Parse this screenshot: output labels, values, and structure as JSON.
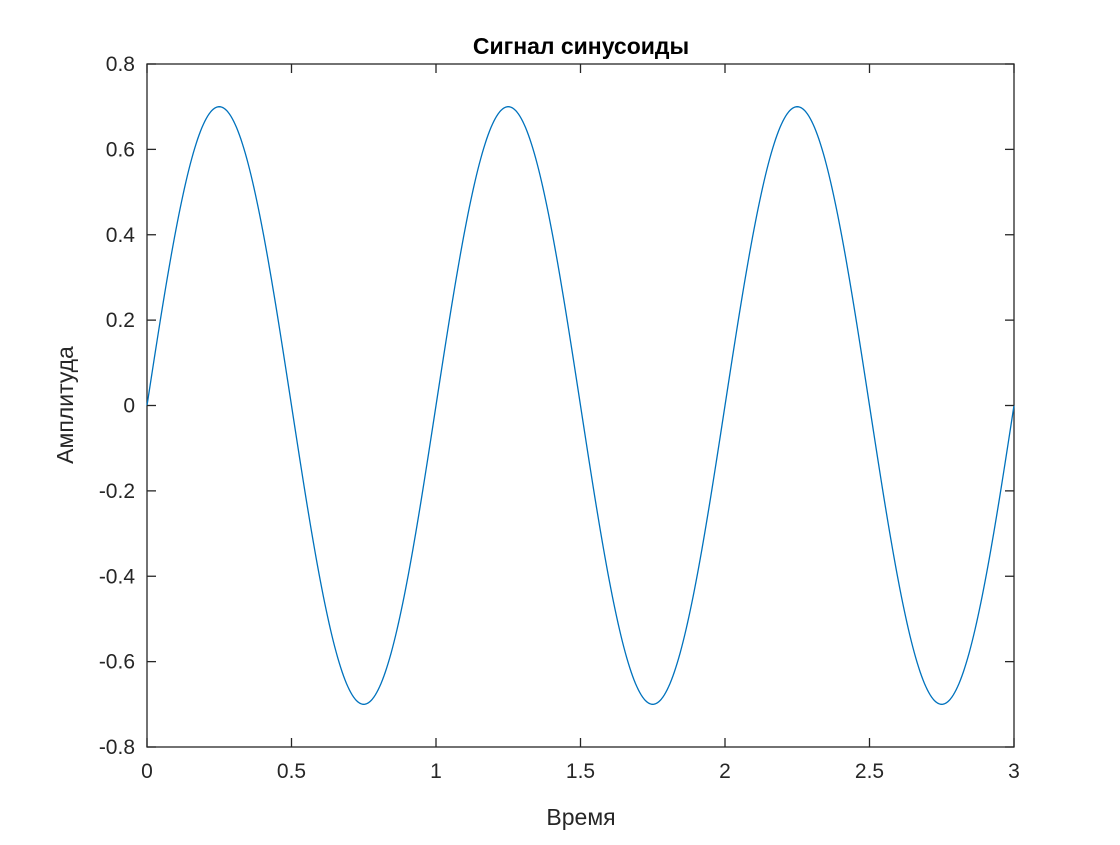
{
  "colors": {
    "line": "#0072BD",
    "axes": "#262626",
    "background": "#ffffff"
  },
  "chart_data": {
    "type": "line",
    "title": "Сигнал синусоиды",
    "xlabel": "Время",
    "ylabel": "Амплитуда",
    "xlim": [
      0,
      3
    ],
    "ylim": [
      -0.8,
      0.8
    ],
    "grid": false,
    "box": true,
    "x_ticks": [
      "0",
      "0.5",
      "1",
      "1.5",
      "2",
      "2.5",
      "3"
    ],
    "y_ticks": [
      "-0.8",
      "-0.6",
      "-0.4",
      "-0.2",
      "0",
      "0.2",
      "0.4",
      "0.6",
      "0.8"
    ],
    "series": [
      {
        "function": "y = 0.7 * sin(2*pi*1*x)",
        "amplitude": 0.7,
        "frequency": 1,
        "x_range": [
          0,
          3
        ],
        "samples": 601,
        "color": "#0072BD"
      }
    ]
  }
}
